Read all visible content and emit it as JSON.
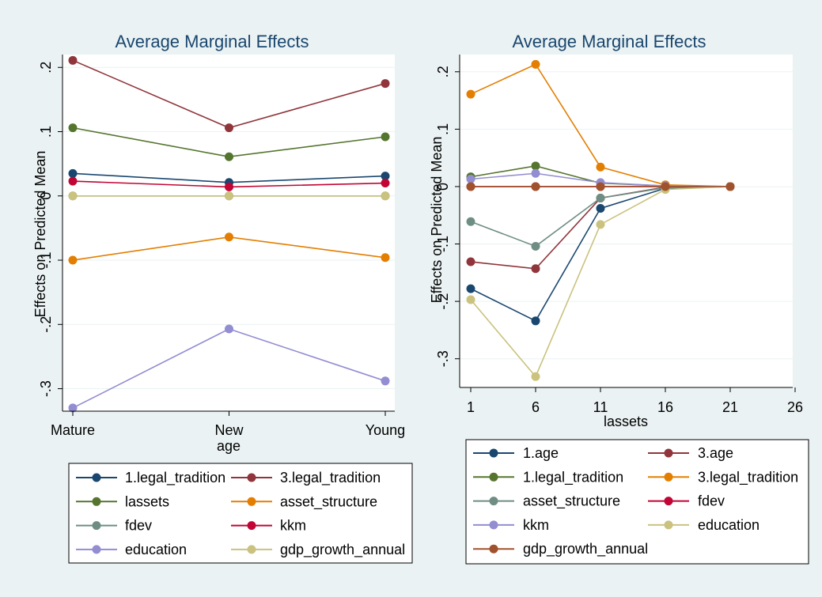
{
  "colors": {
    "background": "#eaf2f3",
    "plot_background": "#ffffff",
    "title": "#1a476f",
    "gridline": "#eaf2f3",
    "navy": "#1a476f",
    "maroon": "#90353b",
    "forest_green": "#55752f",
    "dark_orange": "#e37e00",
    "teal": "#6e8e84",
    "cranberry": "#c10534",
    "lavender": "#938dd2",
    "khaki": "#cac27e",
    "sienna": "#a0522d"
  },
  "chart_data": [
    {
      "type": "line",
      "title": "Average Marginal Effects",
      "xlabel": "age",
      "ylabel": "Effects on Predicted Mean",
      "categories": [
        "Mature",
        "New",
        "Young"
      ],
      "yticks": [
        0.2,
        0.1,
        0,
        -0.1,
        -0.2,
        -0.3
      ],
      "ytick_labels": [
        ".2",
        ".1",
        "0",
        "-.1",
        "-.2",
        "-.3"
      ],
      "ylim": [
        -0.335,
        0.22
      ],
      "grid": true,
      "legend_position": "bottom",
      "series": [
        {
          "name": "1.legal_tradition",
          "color": "#1a476f",
          "values": [
            0.035,
            0.021,
            0.031
          ]
        },
        {
          "name": "3.legal_tradition",
          "color": "#90353b",
          "values": [
            0.211,
            0.106,
            0.175
          ]
        },
        {
          "name": "lassets",
          "color": "#55752f",
          "values": [
            0.106,
            0.061,
            0.092
          ]
        },
        {
          "name": "asset_structure",
          "color": "#e37e00",
          "values": [
            -0.1,
            -0.064,
            -0.096
          ]
        },
        {
          "name": "fdev",
          "color": "#6e8e84",
          "values": [
            0.0,
            0.0,
            0.0
          ]
        },
        {
          "name": "kkm",
          "color": "#c10534",
          "values": [
            0.023,
            0.014,
            0.02
          ]
        },
        {
          "name": "education",
          "color": "#938dd2",
          "values": [
            -0.33,
            -0.207,
            -0.288
          ]
        },
        {
          "name": "gdp_growth_annual",
          "color": "#cac27e",
          "values": [
            0.0,
            0.0,
            0.0
          ]
        }
      ]
    },
    {
      "type": "line",
      "title": "Average Marginal Effects",
      "xlabel": "lassets",
      "ylabel": "Effects on Predicted Mean",
      "x": [
        1,
        6,
        11,
        16,
        21
      ],
      "xticks": [
        1,
        6,
        11,
        16,
        21,
        26
      ],
      "xlim": [
        1,
        26
      ],
      "yticks": [
        0.2,
        0.1,
        0,
        -0.1,
        -0.2,
        -0.3
      ],
      "ytick_labels": [
        ".2",
        ".1",
        "0",
        "-.1",
        "-.2",
        "-.3"
      ],
      "ylim": [
        -0.35,
        0.23
      ],
      "grid": true,
      "legend_position": "bottom",
      "series": [
        {
          "name": "1.age",
          "color": "#1a476f",
          "values": [
            -0.178,
            -0.234,
            -0.038,
            -0.003,
            0.0
          ]
        },
        {
          "name": "3.age",
          "color": "#90353b",
          "values": [
            -0.131,
            -0.143,
            -0.02,
            -0.001,
            0.0
          ]
        },
        {
          "name": "1.legal_tradition",
          "color": "#55752f",
          "values": [
            0.017,
            0.036,
            0.006,
            0.001,
            0.0
          ]
        },
        {
          "name": "3.legal_tradition",
          "color": "#e37e00",
          "values": [
            0.161,
            0.213,
            0.034,
            0.003,
            0.0
          ]
        },
        {
          "name": "asset_structure",
          "color": "#6e8e84",
          "values": [
            -0.061,
            -0.104,
            -0.02,
            -0.002,
            0.0
          ]
        },
        {
          "name": "fdev",
          "color": "#c10534",
          "values": [
            0.0,
            0.0,
            0.0,
            0.0,
            0.0
          ]
        },
        {
          "name": "kkm",
          "color": "#938dd2",
          "values": [
            0.013,
            0.023,
            0.007,
            0.001,
            0.0
          ]
        },
        {
          "name": "education",
          "color": "#cac27e",
          "values": [
            -0.197,
            -0.331,
            -0.066,
            -0.005,
            0.0
          ]
        },
        {
          "name": "gdp_growth_annual",
          "color": "#a0522d",
          "values": [
            0.0,
            0.0,
            0.0,
            0.0,
            0.0
          ]
        }
      ]
    }
  ]
}
